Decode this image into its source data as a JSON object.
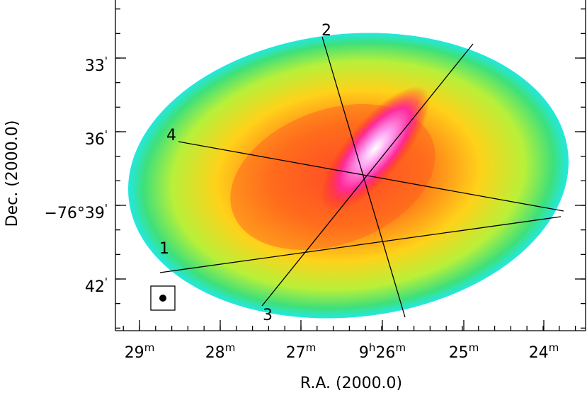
{
  "image": {
    "x_axis_label": "R.A. (2000.0)",
    "y_axis_label": "Dec. (2000.0)",
    "x_tick_labels": [
      [
        "29",
        "m"
      ],
      [
        "28",
        "m"
      ],
      [
        "27",
        "m"
      ],
      [
        "9",
        "h",
        "26",
        "m"
      ],
      [
        "25",
        "m"
      ],
      [
        "24",
        "m"
      ]
    ],
    "y_tick_labels": [
      [
        "33",
        "'"
      ],
      [
        "36",
        "'"
      ],
      [
        "−76°39",
        "'"
      ],
      [
        "42",
        "'"
      ]
    ],
    "slice_labels": [
      "1",
      "2",
      "3",
      "4"
    ]
  }
}
